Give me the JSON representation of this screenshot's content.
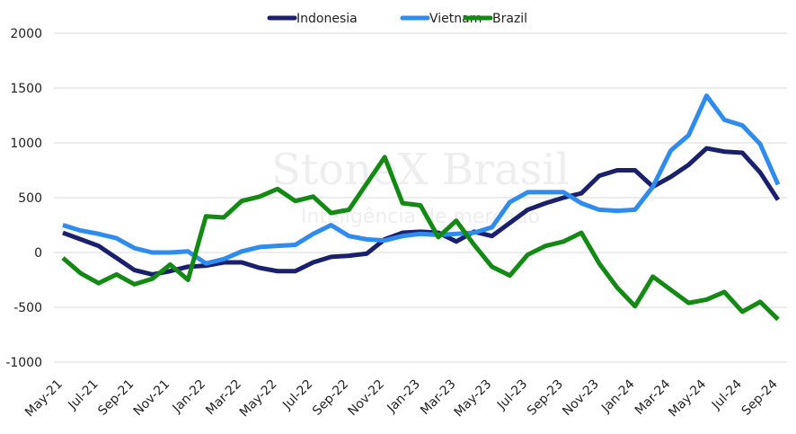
{
  "chart_data": {
    "type": "line",
    "watermark": "StoneX Brasil",
    "watermark_subtitle": "Inteligência de mercado",
    "categories": [
      "May-21",
      null,
      "Jul-21",
      null,
      "Sep-21",
      null,
      "Nov-21",
      null,
      "Jan-22",
      null,
      "Mar-22",
      null,
      "May-22",
      null,
      "Jul-22",
      null,
      "Sep-22",
      null,
      "Nov-22",
      null,
      "Jan-23",
      null,
      "Mar-23",
      null,
      "May-23",
      null,
      "Jul-23",
      null,
      "Sep-23",
      null,
      "Nov-23",
      null,
      "Jan-24",
      null,
      "Mar-24",
      null,
      "May-24",
      null,
      "Jul-24",
      null,
      "Sep-24"
    ],
    "series": [
      {
        "name": "Indonesia",
        "color": "#1a1f6e",
        "values": [
          180,
          120,
          60,
          -50,
          -160,
          -200,
          -170,
          -130,
          -120,
          -90,
          -90,
          -140,
          -170,
          -170,
          -90,
          -40,
          -30,
          -10,
          120,
          180,
          190,
          180,
          100,
          190,
          150,
          270,
          390,
          450,
          500,
          540,
          700,
          750,
          750,
          600,
          690,
          800,
          950,
          920,
          910,
          730,
          480
        ]
      },
      {
        "name": "Vietnam",
        "color": "#2e8cf0",
        "values": [
          250,
          200,
          170,
          130,
          40,
          0,
          0,
          10,
          -100,
          -60,
          10,
          50,
          60,
          70,
          170,
          250,
          150,
          120,
          110,
          150,
          170,
          160,
          170,
          180,
          230,
          460,
          550,
          550,
          550,
          450,
          390,
          380,
          390,
          600,
          930,
          1070,
          1430,
          1210,
          1160,
          990,
          620
        ]
      },
      {
        "name": "Brazil",
        "color": "#138a13",
        "values": [
          -50,
          -190,
          -280,
          -200,
          -290,
          -240,
          -110,
          -250,
          330,
          320,
          470,
          510,
          580,
          470,
          510,
          360,
          390,
          630,
          870,
          450,
          430,
          140,
          290,
          70,
          -130,
          -210,
          -20,
          60,
          100,
          180,
          -100,
          -320,
          -490,
          -220,
          -340,
          -460,
          -430,
          -360,
          -540,
          -450,
          -610
        ]
      }
    ],
    "ylim": [
      -1000,
      2000
    ],
    "yticks": [
      -1000,
      -500,
      0,
      500,
      1000,
      1500,
      2000
    ],
    "grid": true,
    "legend": "top"
  }
}
